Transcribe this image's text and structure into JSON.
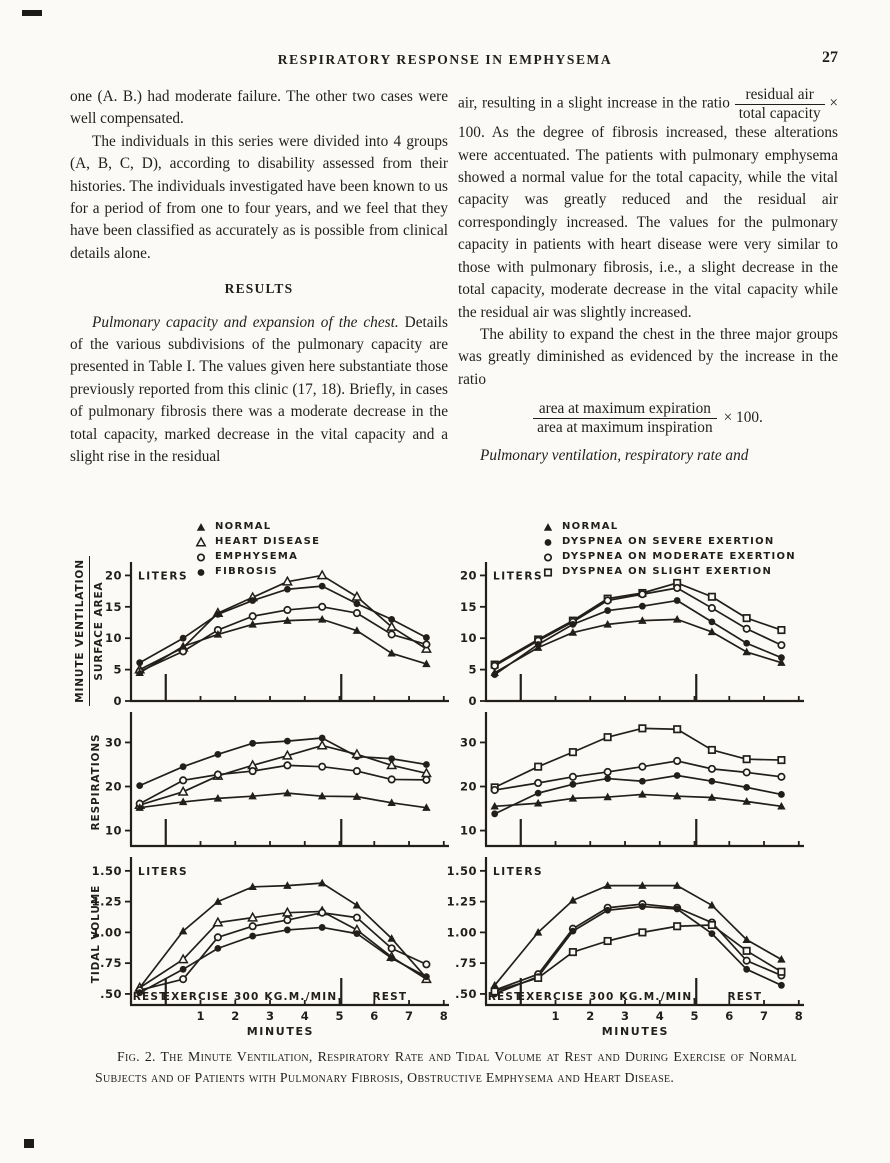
{
  "page": {
    "title": "RESPIRATORY RESPONSE IN EMPHYSEMA",
    "page_number": "27"
  },
  "left_column": {
    "para1": "one (A. B.) had moderate failure.  The other two cases were well compensated.",
    "para2": "The individuals in this series were divided into 4 groups (A, B, C, D), according to disability assessed from their histories.  The individuals investigated have been known to us for a period of from one to four years, and we feel that they have been classified as accurately as is possible from clinical details alone.",
    "results_heading": "RESULTS",
    "para3_lead": "Pulmonary capacity and expansion of the chest.",
    "para3_rest": "Details of the various subdivisions of the pulmonary capacity are presented in Table I.  The values given here substantiate those previously reported from this clinic (17, 18).  Briefly, in cases of pulmonary fibrosis there was a moderate decrease in the total capacity, marked decrease in the vital capacity and a slight rise in the residual"
  },
  "right_column": {
    "para1_start": "air, resulting in a slight increase in the ratio",
    "frac1_num": "residual air",
    "frac1_den": "total capacity",
    "frac1_times": "× 100.",
    "para1_after": "As the degree of fibrosis increased, these alterations were accentuated.  The patients with pulmonary emphysema showed a normal value for the total capacity, while the vital capacity was greatly reduced and the residual air correspondingly increased.  The values for the pulmonary capacity in patients with heart disease were very similar to those with pulmonary fibrosis, i.e., a slight decrease in the total capacity, moderate decrease in the vital capacity while the residual air was slightly increased.",
    "para2": "The ability to expand the chest in the three major groups was greatly diminished as evidenced by the increase in the ratio",
    "frac2_num": "area at maximum expiration",
    "frac2_den": "area at maximum inspiration",
    "frac2_times": "× 100.",
    "para3_italic": "Pulmonary ventilation, respiratory rate and"
  },
  "figure": {
    "legend_left": [
      {
        "marker": "triangle-filled",
        "label": "NORMAL"
      },
      {
        "marker": "triangle-open",
        "label": "HEART DISEASE"
      },
      {
        "marker": "circle-open",
        "label": "EMPHYSEMA"
      },
      {
        "marker": "circle-filled",
        "label": "FIBROSIS"
      }
    ],
    "legend_right": [
      {
        "marker": "triangle-filled",
        "label": "NORMAL"
      },
      {
        "marker": "circle-filled",
        "label": "DYSPNEA ON SEVERE EXERTION"
      },
      {
        "marker": "circle-open",
        "label": "DYSPNEA ON MODERATE EXERTION"
      },
      {
        "marker": "square-open",
        "label": "DYSPNEA ON SLIGHT EXERTION"
      }
    ],
    "ylabels": {
      "top_numerator": "MINUTE VENTILATION",
      "top_denominator": "SURFACE AREA",
      "middle": "RESPIRATIONS",
      "bottom": "TIDAL VOLUME"
    },
    "caption": "Fig. 2.  The Minute Ventilation, Respiratory Rate and Tidal Volume at Rest and During Exercise of Normal Subjects and of Patients with Pulmonary Fibrosis, Obstructive Emphysema and Heart Disease."
  },
  "chart_data": [
    {
      "type": "line",
      "name": "minute-ventilation-left",
      "ylabel": "MINUTE VENTILATION / SURFACE AREA",
      "unit_label": "LITERS",
      "ylim": [
        0,
        21.5
      ],
      "ytick_vals": [
        0,
        5,
        10,
        15,
        20
      ],
      "yticks": [
        "0",
        "5",
        "10",
        "15",
        "20"
      ],
      "x": [
        -0.75,
        0.5,
        1.5,
        2.5,
        3.5,
        4.5,
        5.5,
        6.5,
        7.5
      ],
      "xlim": [
        -1,
        8.15
      ],
      "xticks": [
        1,
        2,
        3,
        4,
        5,
        6,
        7,
        8
      ],
      "dividers": [
        0,
        5.05
      ],
      "series": [
        {
          "name": "HEART DISEASE",
          "marker": "triangle-open",
          "values": [
            5.0,
            8.5,
            14.0,
            16.5,
            19.0,
            20.0,
            16.6,
            11.8,
            8.3
          ]
        },
        {
          "name": "FIBROSIS",
          "marker": "circle-filled",
          "values": [
            6.1,
            10.0,
            13.8,
            16.0,
            17.8,
            18.3,
            15.5,
            13.0,
            10.1
          ]
        },
        {
          "name": "EMPHYSEMA",
          "marker": "circle-open",
          "values": [
            4.7,
            7.9,
            11.3,
            13.5,
            14.5,
            15.0,
            14.0,
            10.6,
            9.0
          ]
        },
        {
          "name": "NORMAL",
          "marker": "triangle-filled",
          "values": [
            4.5,
            8.7,
            10.6,
            12.2,
            12.8,
            13.0,
            11.2,
            7.6,
            5.9
          ]
        }
      ]
    },
    {
      "type": "line",
      "name": "respirations-left",
      "ylabel": "RESPIRATIONS",
      "ylim": [
        6.5,
        36
      ],
      "ytick_vals": [
        10,
        20,
        30
      ],
      "yticks": [
        "10",
        "20",
        "30"
      ],
      "x": [
        -0.75,
        0.5,
        1.5,
        2.5,
        3.5,
        4.5,
        5.5,
        6.5,
        7.5
      ],
      "xlim": [
        -1,
        8.15
      ],
      "xticks": [
        1,
        2,
        3,
        4,
        5,
        6,
        7,
        8
      ],
      "dividers": [
        0,
        5.05
      ],
      "series": [
        {
          "name": "FIBROSIS",
          "marker": "circle-filled",
          "values": [
            20.2,
            24.5,
            27.3,
            29.8,
            30.3,
            31.0,
            26.8,
            26.3,
            25.0
          ]
        },
        {
          "name": "HEART DISEASE",
          "marker": "triangle-open",
          "values": [
            15.8,
            18.8,
            22.4,
            24.8,
            27.0,
            29.3,
            27.3,
            24.8,
            23.0
          ]
        },
        {
          "name": "EMPHYSEMA",
          "marker": "circle-open",
          "values": [
            16.1,
            21.4,
            22.7,
            23.5,
            24.8,
            24.5,
            23.5,
            21.6,
            21.5
          ]
        },
        {
          "name": "NORMAL",
          "marker": "triangle-filled",
          "values": [
            15.2,
            16.5,
            17.3,
            17.8,
            18.5,
            17.8,
            17.7,
            16.3,
            15.2
          ]
        }
      ]
    },
    {
      "type": "line",
      "name": "tidal-volume-left",
      "ylabel": "TIDAL VOLUME",
      "unit_label": "LITERS",
      "ylim": [
        0.41,
        1.58
      ],
      "ytick_vals": [
        0.5,
        0.75,
        1.0,
        1.25,
        1.5
      ],
      "yticks": [
        ".50",
        ".75",
        "1.00",
        "1.25",
        "1.50"
      ],
      "x": [
        -0.75,
        0.5,
        1.5,
        2.5,
        3.5,
        4.5,
        5.5,
        6.5,
        7.5
      ],
      "xlim": [
        -1,
        8.15
      ],
      "xticks": [
        1,
        2,
        3,
        4,
        5,
        6,
        7,
        8
      ],
      "dividers": [
        0,
        5.05
      ],
      "show_x_labels": true,
      "xlabel": "MINUTES",
      "zones": [
        {
          "label": "REST",
          "x": -0.45
        },
        {
          "label": "EXERCISE  300 KG.M./MIN.",
          "x": 2.5
        },
        {
          "label": "REST",
          "x": 6.45
        }
      ],
      "series": [
        {
          "name": "NORMAL",
          "marker": "triangle-filled",
          "values": [
            0.55,
            1.01,
            1.25,
            1.37,
            1.38,
            1.4,
            1.22,
            0.95,
            0.63
          ]
        },
        {
          "name": "HEART DISEASE",
          "marker": "triangle-open",
          "values": [
            0.55,
            0.78,
            1.08,
            1.12,
            1.16,
            1.17,
            1.02,
            0.8,
            0.62
          ]
        },
        {
          "name": "EMPHYSEMA",
          "marker": "circle-open",
          "values": [
            0.53,
            0.62,
            0.96,
            1.05,
            1.1,
            1.16,
            1.12,
            0.87,
            0.74
          ]
        },
        {
          "name": "FIBROSIS",
          "marker": "circle-filled",
          "values": [
            0.51,
            0.7,
            0.87,
            0.97,
            1.02,
            1.04,
            0.99,
            0.79,
            0.64
          ]
        }
      ]
    },
    {
      "type": "line",
      "name": "minute-ventilation-right",
      "unit_label": "LITERS",
      "ylim": [
        0,
        21.5
      ],
      "ytick_vals": [
        0,
        5,
        10,
        15,
        20
      ],
      "yticks": [
        "0",
        "5",
        "10",
        "15",
        "20"
      ],
      "x": [
        -0.75,
        0.5,
        1.5,
        2.5,
        3.5,
        4.5,
        5.5,
        6.5,
        7.5
      ],
      "xlim": [
        -1,
        8.15
      ],
      "xticks": [
        1,
        2,
        3,
        4,
        5,
        6,
        7,
        8
      ],
      "dividers": [
        0,
        5.05
      ],
      "series": [
        {
          "name": "DYSPNEA ON SLIGHT EXERTION",
          "marker": "square-open",
          "values": [
            5.8,
            9.8,
            12.8,
            16.3,
            17.2,
            18.8,
            16.6,
            13.2,
            11.3
          ]
        },
        {
          "name": "DYSPNEA ON MODERATE EXERTION",
          "marker": "circle-open",
          "values": [
            5.6,
            9.6,
            12.6,
            16.0,
            17.0,
            18.0,
            14.8,
            11.5,
            8.9
          ]
        },
        {
          "name": "DYSPNEA ON SEVERE EXERTION",
          "marker": "circle-filled",
          "values": [
            4.2,
            9.0,
            12.2,
            14.4,
            15.1,
            16.0,
            12.6,
            9.2,
            6.9
          ]
        },
        {
          "name": "NORMAL",
          "marker": "triangle-filled",
          "values": [
            4.5,
            8.5,
            10.9,
            12.2,
            12.8,
            13.0,
            11.0,
            7.8,
            6.1
          ]
        }
      ]
    },
    {
      "type": "line",
      "name": "respirations-right",
      "ylim": [
        6.5,
        36
      ],
      "ytick_vals": [
        10,
        20,
        30
      ],
      "yticks": [
        "10",
        "20",
        "30"
      ],
      "x": [
        -0.75,
        0.5,
        1.5,
        2.5,
        3.5,
        4.5,
        5.5,
        6.5,
        7.5
      ],
      "xlim": [
        -1,
        8.15
      ],
      "xticks": [
        1,
        2,
        3,
        4,
        5,
        6,
        7,
        8
      ],
      "dividers": [
        0,
        5.05
      ],
      "series": [
        {
          "name": "DYSPNEA ON SLIGHT EXERTION",
          "marker": "square-open",
          "values": [
            19.8,
            24.5,
            27.8,
            31.2,
            33.2,
            33.0,
            28.3,
            26.2,
            26.0
          ]
        },
        {
          "name": "DYSPNEA ON MODERATE EXERTION",
          "marker": "circle-open",
          "values": [
            19.2,
            20.8,
            22.2,
            23.3,
            24.5,
            25.8,
            24.0,
            23.2,
            22.2
          ]
        },
        {
          "name": "DYSPNEA ON SEVERE EXERTION",
          "marker": "circle-filled",
          "values": [
            13.8,
            18.5,
            20.5,
            21.8,
            21.2,
            22.5,
            21.2,
            19.8,
            18.2
          ]
        },
        {
          "name": "NORMAL",
          "marker": "triangle-filled",
          "values": [
            15.5,
            16.2,
            17.3,
            17.6,
            18.2,
            17.8,
            17.5,
            16.6,
            15.5
          ]
        }
      ]
    },
    {
      "type": "line",
      "name": "tidal-volume-right",
      "unit_label": "LITERS",
      "ylim": [
        0.41,
        1.58
      ],
      "ytick_vals": [
        0.5,
        0.75,
        1.0,
        1.25,
        1.5
      ],
      "yticks": [
        ".50",
        ".75",
        "1.00",
        "1.25",
        "1.50"
      ],
      "x": [
        -0.75,
        0.5,
        1.5,
        2.5,
        3.5,
        4.5,
        5.5,
        6.5,
        7.5
      ],
      "xlim": [
        -1,
        8.15
      ],
      "xticks": [
        1,
        2,
        3,
        4,
        5,
        6,
        7,
        8
      ],
      "dividers": [
        0,
        5.05
      ],
      "show_x_labels": true,
      "xlabel": "MINUTES",
      "zones": [
        {
          "label": "REST",
          "x": -0.45
        },
        {
          "label": "EXERCISE  300 KG.M./MIN.",
          "x": 2.5
        },
        {
          "label": "REST",
          "x": 6.45
        }
      ],
      "series": [
        {
          "name": "NORMAL",
          "marker": "triangle-filled",
          "values": [
            0.57,
            1.0,
            1.26,
            1.38,
            1.38,
            1.38,
            1.22,
            0.94,
            0.78
          ]
        },
        {
          "name": "DYSPNEA ON MODERATE EXERTION",
          "marker": "circle-open",
          "values": [
            0.53,
            0.66,
            1.03,
            1.2,
            1.23,
            1.2,
            1.08,
            0.77,
            0.65
          ]
        },
        {
          "name": "DYSPNEA ON SEVERE EXERTION",
          "marker": "circle-filled",
          "values": [
            0.5,
            0.64,
            1.01,
            1.18,
            1.21,
            1.19,
            0.99,
            0.7,
            0.57
          ]
        },
        {
          "name": "DYSPNEA ON SLIGHT EXERTION",
          "marker": "square-open",
          "values": [
            0.52,
            0.63,
            0.84,
            0.93,
            1.0,
            1.05,
            1.06,
            0.85,
            0.68
          ]
        }
      ]
    }
  ]
}
